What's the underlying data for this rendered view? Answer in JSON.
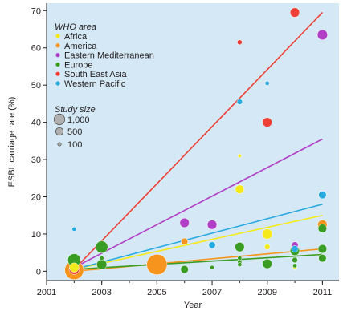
{
  "chart_data": {
    "type": "scatter",
    "xlabel": "Year",
    "ylabel": "ESBL carriage rate (%)",
    "xlim": [
      2001,
      2011.6
    ],
    "ylim": [
      -2.5,
      72
    ],
    "xticks": [
      2001,
      2003,
      2005,
      2007,
      2009,
      2011
    ],
    "yticks": [
      0,
      10,
      20,
      30,
      40,
      50,
      60,
      70
    ],
    "background": "#d5e8f5",
    "grid": false,
    "legend": {
      "title": "WHO area",
      "placement": "top-left",
      "size_title": "Study size",
      "size_entries": [
        {
          "label": "1,000",
          "size": 1000
        },
        {
          "label": "500",
          "size": 500
        },
        {
          "label": "100",
          "size": 100
        }
      ]
    },
    "series": [
      {
        "name": "Africa",
        "color": "#f4ea1b",
        "points": [
          {
            "x": 2002,
            "y": 1,
            "size": 300
          },
          {
            "x": 2008,
            "y": 31,
            "size": 40
          },
          {
            "x": 2008,
            "y": 22,
            "size": 250
          },
          {
            "x": 2009,
            "y": 10,
            "size": 350
          },
          {
            "x": 2009,
            "y": 6.5,
            "size": 100
          },
          {
            "x": 2010,
            "y": 1,
            "size": 60
          }
        ],
        "trend": {
          "x": [
            2002,
            2011
          ],
          "y": [
            0.5,
            15
          ]
        }
      },
      {
        "name": "America",
        "color": "#f7941d",
        "points": [
          {
            "x": 2002,
            "y": 0.3,
            "size": 1200
          },
          {
            "x": 2005,
            "y": 1.8,
            "size": 1400
          },
          {
            "x": 2006,
            "y": 8,
            "size": 150
          },
          {
            "x": 2011,
            "y": 12.5,
            "size": 300
          }
        ],
        "trend": {
          "x": [
            2002,
            2011
          ],
          "y": [
            0,
            6
          ]
        }
      },
      {
        "name": "Eastern Mediterranean",
        "color": "#b13fc6",
        "points": [
          {
            "x": 2006,
            "y": 13,
            "size": 300
          },
          {
            "x": 2007,
            "y": 12.5,
            "size": 300
          },
          {
            "x": 2010,
            "y": 7,
            "size": 150
          },
          {
            "x": 2011,
            "y": 63.5,
            "size": 350
          }
        ],
        "trend": {
          "x": [
            2002,
            2011
          ],
          "y": [
            1,
            35.5
          ]
        }
      },
      {
        "name": "Europe",
        "color": "#3a9d23",
        "points": [
          {
            "x": 2002,
            "y": 3,
            "size": 550
          },
          {
            "x": 2003,
            "y": 6.5,
            "size": 500
          },
          {
            "x": 2003,
            "y": 3.5,
            "size": 60
          },
          {
            "x": 2003,
            "y": 1.8,
            "size": 350
          },
          {
            "x": 2006,
            "y": 0.5,
            "size": 200
          },
          {
            "x": 2007,
            "y": 1,
            "size": 60
          },
          {
            "x": 2008,
            "y": 6.5,
            "size": 300
          },
          {
            "x": 2008,
            "y": 3.5,
            "size": 60
          },
          {
            "x": 2008,
            "y": 2.5,
            "size": 60
          },
          {
            "x": 2008,
            "y": 1.8,
            "size": 60
          },
          {
            "x": 2009,
            "y": 2,
            "size": 300
          },
          {
            "x": 2010,
            "y": 5.5,
            "size": 300
          },
          {
            "x": 2010,
            "y": 3,
            "size": 100
          },
          {
            "x": 2010,
            "y": 1.5,
            "size": 60
          },
          {
            "x": 2011,
            "y": 11.5,
            "size": 250
          },
          {
            "x": 2011,
            "y": 6,
            "size": 250
          },
          {
            "x": 2011,
            "y": 3.5,
            "size": 200
          }
        ],
        "trend": {
          "x": [
            2002,
            2011
          ],
          "y": [
            0.5,
            4.5
          ]
        }
      },
      {
        "name": "South East Asia",
        "color": "#ee4036",
        "points": [
          {
            "x": 2002,
            "y": 0.5,
            "size": 350
          },
          {
            "x": 2008,
            "y": 61.5,
            "size": 80
          },
          {
            "x": 2009,
            "y": 40,
            "size": 300
          },
          {
            "x": 2010,
            "y": 69.5,
            "size": 300
          }
        ],
        "trend": {
          "x": [
            2002,
            2011
          ],
          "y": [
            0.5,
            69.5
          ]
        }
      },
      {
        "name": "Western Pacific",
        "color": "#27aae1",
        "points": [
          {
            "x": 2002,
            "y": 11.3,
            "size": 60
          },
          {
            "x": 2007,
            "y": 7,
            "size": 150
          },
          {
            "x": 2008,
            "y": 45.5,
            "size": 100
          },
          {
            "x": 2009,
            "y": 50.5,
            "size": 60
          },
          {
            "x": 2010,
            "y": 6,
            "size": 150
          },
          {
            "x": 2011,
            "y": 20.5,
            "size": 200
          }
        ],
        "trend": {
          "x": [
            2002,
            2011
          ],
          "y": [
            0.5,
            18
          ]
        }
      }
    ]
  }
}
